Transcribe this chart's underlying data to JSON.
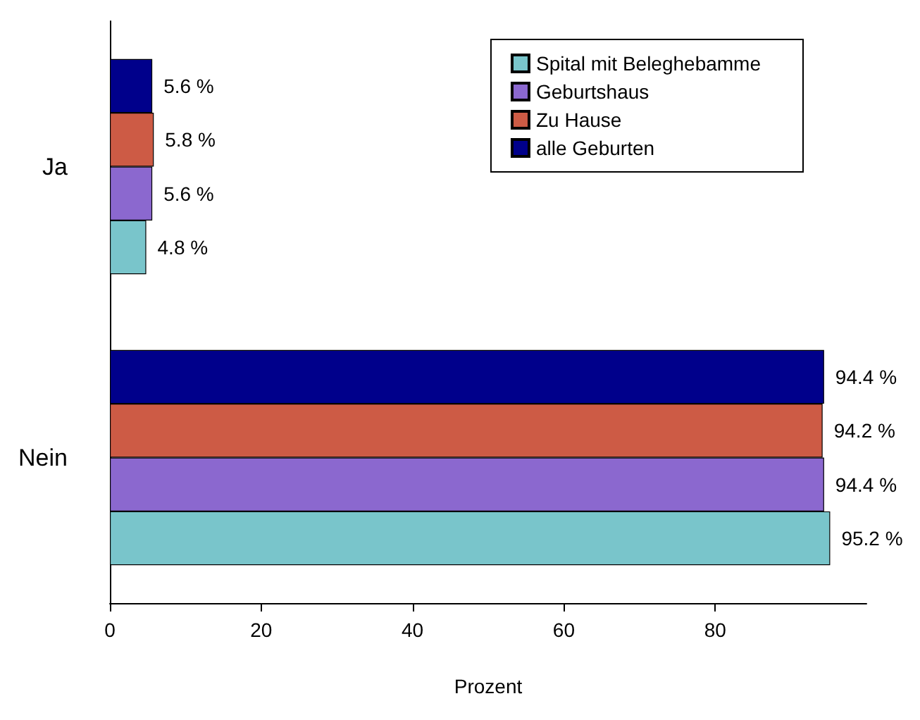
{
  "chart_data": {
    "type": "bar",
    "orientation": "horizontal",
    "categories": [
      "Ja",
      "Nein"
    ],
    "xlabel": "Prozent",
    "xlim": [
      0,
      100
    ],
    "xticks": [
      0,
      20,
      40,
      60,
      80
    ],
    "legend": "top right",
    "grid": false,
    "series": [
      {
        "name": "Spital mit Beleghebamme",
        "color": "#79c5cb",
        "values": [
          4.8,
          95.2
        ],
        "value_labels": [
          "4.8 %",
          "95.2 %"
        ]
      },
      {
        "name": "Geburtshaus",
        "color": "#8b68cf",
        "values": [
          5.6,
          94.4
        ],
        "value_labels": [
          "5.6 %",
          "94.4 %"
        ]
      },
      {
        "name": "Zu Hause",
        "color": "#cd5b45",
        "values": [
          5.8,
          94.2
        ],
        "value_labels": [
          "5.8 %",
          "94.2 %"
        ]
      },
      {
        "name": "alle Geburten",
        "color": "#00008b",
        "values": [
          5.6,
          94.4
        ],
        "value_labels": [
          "5.6 %",
          "94.4 %"
        ]
      }
    ]
  }
}
